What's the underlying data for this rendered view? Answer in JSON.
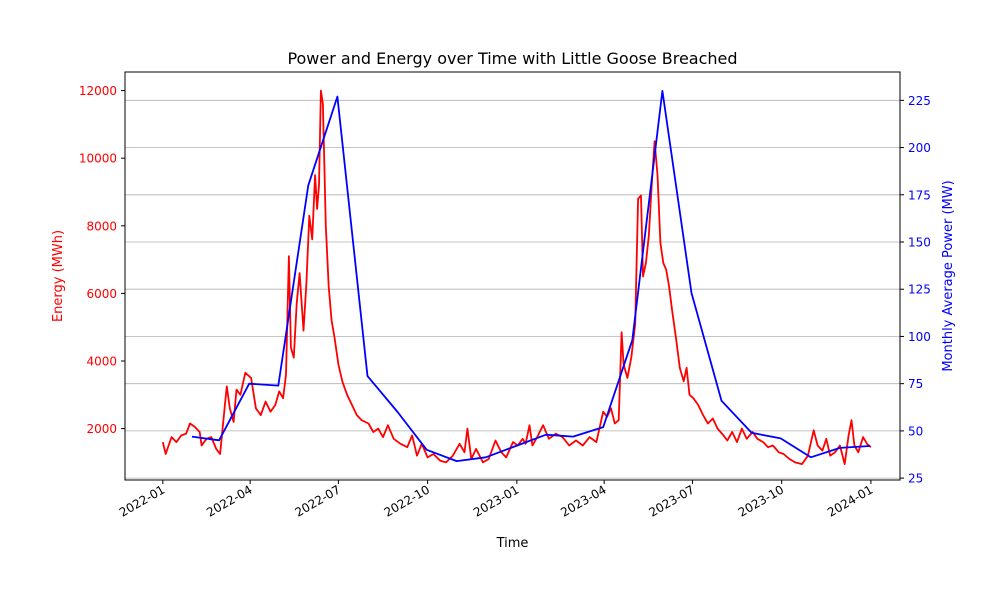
{
  "chart_data": {
    "type": "line",
    "title": "Power and Energy over Time with Little Goose Breached",
    "xlabel": "Time",
    "x_ticks": [
      "2022-01",
      "2022-04",
      "2022-07",
      "2022-10",
      "2023-01",
      "2023-04",
      "2023-07",
      "2023-10",
      "2024-01"
    ],
    "xlim": [
      "2021-11-23",
      "2024-01-31"
    ],
    "grid": "horizontal, right axis",
    "y_left": {
      "label": "Energy (MWh)",
      "color": "#ff0000",
      "ylim": [
        480,
        12550
      ],
      "ticks": [
        2000,
        4000,
        6000,
        8000,
        10000,
        12000
      ],
      "tick_labels": [
        "2000",
        "4000",
        "6000",
        "8000",
        "10000",
        "12000"
      ]
    },
    "y_right": {
      "label": "Monthly Average Power (MW)",
      "color": "#0000ff",
      "ylim": [
        24,
        240
      ],
      "ticks": [
        25,
        50,
        75,
        100,
        125,
        150,
        175,
        200,
        225
      ],
      "tick_labels": [
        "25",
        "50",
        "75",
        "100",
        "125",
        "150",
        "175",
        "200",
        "225"
      ]
    },
    "series": [
      {
        "color": "#ff0000",
        "axis": "left",
        "points": [
          [
            "2022-01-01",
            1600
          ],
          [
            "2022-01-04",
            1250
          ],
          [
            "2022-01-07",
            1500
          ],
          [
            "2022-01-10",
            1750
          ],
          [
            "2022-01-15",
            1600
          ],
          [
            "2022-01-20",
            1800
          ],
          [
            "2022-01-25",
            1850
          ],
          [
            "2022-01-29",
            2150
          ],
          [
            "2022-02-03",
            2050
          ],
          [
            "2022-02-08",
            1900
          ],
          [
            "2022-02-10",
            1500
          ],
          [
            "2022-02-15",
            1700
          ],
          [
            "2022-02-20",
            1750
          ],
          [
            "2022-02-25",
            1400
          ],
          [
            "2022-03-01",
            1250
          ],
          [
            "2022-03-06",
            2700
          ],
          [
            "2022-03-08",
            3250
          ],
          [
            "2022-03-11",
            2600
          ],
          [
            "2022-03-15",
            2200
          ],
          [
            "2022-03-18",
            3150
          ],
          [
            "2022-03-22",
            3000
          ],
          [
            "2022-03-27",
            3650
          ],
          [
            "2022-04-02",
            3500
          ],
          [
            "2022-04-07",
            2600
          ],
          [
            "2022-04-12",
            2400
          ],
          [
            "2022-04-17",
            2800
          ],
          [
            "2022-04-22",
            2500
          ],
          [
            "2022-04-27",
            2700
          ],
          [
            "2022-05-01",
            3100
          ],
          [
            "2022-05-05",
            2900
          ],
          [
            "2022-05-08",
            3600
          ],
          [
            "2022-05-11",
            7100
          ],
          [
            "2022-05-13",
            4400
          ],
          [
            "2022-05-16",
            4100
          ],
          [
            "2022-05-19",
            5700
          ],
          [
            "2022-05-22",
            6600
          ],
          [
            "2022-05-26",
            4900
          ],
          [
            "2022-05-29",
            6300
          ],
          [
            "2022-06-01",
            8300
          ],
          [
            "2022-06-04",
            7600
          ],
          [
            "2022-06-07",
            9500
          ],
          [
            "2022-06-09",
            8500
          ],
          [
            "2022-06-11",
            9200
          ],
          [
            "2022-06-13",
            12000
          ],
          [
            "2022-06-15",
            11600
          ],
          [
            "2022-06-18",
            8000
          ],
          [
            "2022-06-21",
            6200
          ],
          [
            "2022-06-24",
            5200
          ],
          [
            "2022-06-27",
            4700
          ],
          [
            "2022-07-01",
            3900
          ],
          [
            "2022-07-05",
            3400
          ],
          [
            "2022-07-10",
            3000
          ],
          [
            "2022-07-15",
            2700
          ],
          [
            "2022-07-20",
            2400
          ],
          [
            "2022-07-25",
            2250
          ],
          [
            "2022-08-01",
            2150
          ],
          [
            "2022-08-06",
            1900
          ],
          [
            "2022-08-11",
            2000
          ],
          [
            "2022-08-16",
            1750
          ],
          [
            "2022-08-21",
            2100
          ],
          [
            "2022-08-27",
            1700
          ],
          [
            "2022-09-03",
            1550
          ],
          [
            "2022-09-10",
            1450
          ],
          [
            "2022-09-15",
            1800
          ],
          [
            "2022-09-20",
            1200
          ],
          [
            "2022-09-25",
            1550
          ],
          [
            "2022-10-01",
            1150
          ],
          [
            "2022-10-07",
            1250
          ],
          [
            "2022-10-14",
            1050
          ],
          [
            "2022-10-20",
            1000
          ],
          [
            "2022-10-27",
            1200
          ],
          [
            "2022-11-03",
            1550
          ],
          [
            "2022-11-08",
            1300
          ],
          [
            "2022-11-11",
            2000
          ],
          [
            "2022-11-15",
            1100
          ],
          [
            "2022-11-20",
            1400
          ],
          [
            "2022-11-27",
            1000
          ],
          [
            "2022-12-03",
            1100
          ],
          [
            "2022-12-10",
            1650
          ],
          [
            "2022-12-16",
            1300
          ],
          [
            "2022-12-21",
            1150
          ],
          [
            "2022-12-28",
            1600
          ],
          [
            "2023-01-02",
            1500
          ],
          [
            "2023-01-07",
            1700
          ],
          [
            "2023-01-10",
            1550
          ],
          [
            "2023-01-14",
            2100
          ],
          [
            "2023-01-17",
            1500
          ],
          [
            "2023-01-22",
            1750
          ],
          [
            "2023-01-28",
            2100
          ],
          [
            "2023-02-03",
            1700
          ],
          [
            "2023-02-10",
            1850
          ],
          [
            "2023-02-17",
            1750
          ],
          [
            "2023-02-24",
            1500
          ],
          [
            "2023-03-03",
            1650
          ],
          [
            "2023-03-10",
            1500
          ],
          [
            "2023-03-17",
            1750
          ],
          [
            "2023-03-24",
            1600
          ],
          [
            "2023-03-31",
            2500
          ],
          [
            "2023-04-04",
            2350
          ],
          [
            "2023-04-08",
            2600
          ],
          [
            "2023-04-12",
            2150
          ],
          [
            "2023-04-16",
            2250
          ],
          [
            "2023-04-19",
            4850
          ],
          [
            "2023-04-21",
            3900
          ],
          [
            "2023-04-25",
            3500
          ],
          [
            "2023-04-29",
            4100
          ],
          [
            "2023-05-03",
            5100
          ],
          [
            "2023-05-06",
            8800
          ],
          [
            "2023-05-09",
            8900
          ],
          [
            "2023-05-11",
            6500
          ],
          [
            "2023-05-14",
            6900
          ],
          [
            "2023-05-17",
            7700
          ],
          [
            "2023-05-20",
            9200
          ],
          [
            "2023-05-23",
            10500
          ],
          [
            "2023-05-26",
            9500
          ],
          [
            "2023-05-29",
            7500
          ],
          [
            "2023-06-01",
            6900
          ],
          [
            "2023-06-04",
            6700
          ],
          [
            "2023-06-07",
            6200
          ],
          [
            "2023-06-10",
            5500
          ],
          [
            "2023-06-14",
            4700
          ],
          [
            "2023-06-18",
            3800
          ],
          [
            "2023-06-22",
            3400
          ],
          [
            "2023-06-25",
            3800
          ],
          [
            "2023-06-28",
            3000
          ],
          [
            "2023-07-02",
            2900
          ],
          [
            "2023-07-07",
            2700
          ],
          [
            "2023-07-12",
            2400
          ],
          [
            "2023-07-17",
            2150
          ],
          [
            "2023-07-22",
            2300
          ],
          [
            "2023-07-27",
            2000
          ],
          [
            "2023-08-02",
            1800
          ],
          [
            "2023-08-06",
            1650
          ],
          [
            "2023-08-11",
            1900
          ],
          [
            "2023-08-16",
            1600
          ],
          [
            "2023-08-21",
            2000
          ],
          [
            "2023-08-26",
            1700
          ],
          [
            "2023-09-01",
            1900
          ],
          [
            "2023-09-06",
            1700
          ],
          [
            "2023-09-12",
            1600
          ],
          [
            "2023-09-17",
            1450
          ],
          [
            "2023-09-22",
            1500
          ],
          [
            "2023-09-28",
            1300
          ],
          [
            "2023-10-03",
            1250
          ],
          [
            "2023-10-09",
            1100
          ],
          [
            "2023-10-15",
            1000
          ],
          [
            "2023-10-22",
            950
          ],
          [
            "2023-10-28",
            1200
          ],
          [
            "2023-11-03",
            1950
          ],
          [
            "2023-11-07",
            1500
          ],
          [
            "2023-11-12",
            1350
          ],
          [
            "2023-11-16",
            1700
          ],
          [
            "2023-11-20",
            1200
          ],
          [
            "2023-11-25",
            1300
          ],
          [
            "2023-11-30",
            1500
          ],
          [
            "2023-12-05",
            950
          ],
          [
            "2023-12-09",
            1800
          ],
          [
            "2023-12-12",
            2250
          ],
          [
            "2023-12-15",
            1500
          ],
          [
            "2023-12-19",
            1300
          ],
          [
            "2023-12-24",
            1750
          ],
          [
            "2023-12-28",
            1550
          ],
          [
            "2024-01-01",
            1450
          ]
        ]
      },
      {
        "color": "#0000ff",
        "axis": "right",
        "points": [
          [
            "2022-01-31",
            47
          ],
          [
            "2022-02-28",
            45
          ],
          [
            "2022-03-31",
            75
          ],
          [
            "2022-04-30",
            74
          ],
          [
            "2022-05-31",
            180
          ],
          [
            "2022-06-30",
            227
          ],
          [
            "2022-07-31",
            79
          ],
          [
            "2022-08-31",
            60
          ],
          [
            "2022-09-30",
            40
          ],
          [
            "2022-10-31",
            34
          ],
          [
            "2022-11-30",
            36
          ],
          [
            "2022-12-31",
            42
          ],
          [
            "2023-01-31",
            48
          ],
          [
            "2023-02-28",
            47
          ],
          [
            "2023-03-31",
            52
          ],
          [
            "2023-04-30",
            98
          ],
          [
            "2023-05-31",
            230
          ],
          [
            "2023-06-30",
            123
          ],
          [
            "2023-07-31",
            66
          ],
          [
            "2023-08-31",
            49
          ],
          [
            "2023-09-30",
            46
          ],
          [
            "2023-10-31",
            36
          ],
          [
            "2023-11-30",
            41
          ],
          [
            "2023-12-31",
            42
          ]
        ]
      }
    ]
  }
}
